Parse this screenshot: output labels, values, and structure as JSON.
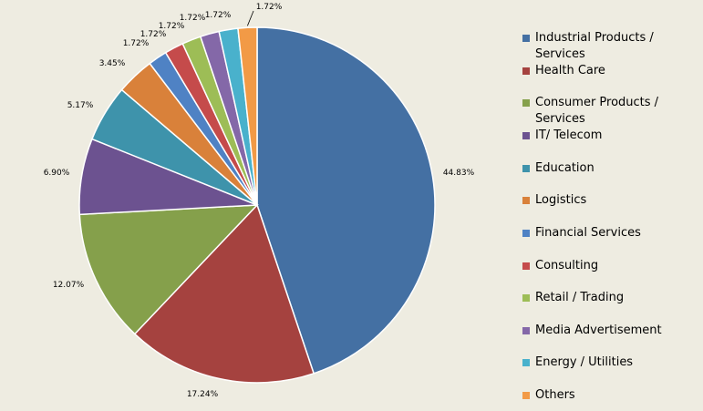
{
  "chart_data": {
    "type": "pie",
    "title": "",
    "legend_position": "right",
    "slices": [
      {
        "label": "Industrial Products / Services",
        "value": 44.83,
        "value_label": "44.83%",
        "color": "#4470a3"
      },
      {
        "label": "Health Care",
        "value": 17.24,
        "value_label": "17.24%",
        "color": "#a5423f"
      },
      {
        "label": "Consumer Products / Services",
        "value": 12.07,
        "value_label": "12.07%",
        "color": "#85a04b"
      },
      {
        "label": "IT/ Telecom",
        "value": 6.9,
        "value_label": "6.90%",
        "color": "#6c5290"
      },
      {
        "label": "Education",
        "value": 5.17,
        "value_label": "5.17%",
        "color": "#3e93ab"
      },
      {
        "label": "Logistics",
        "value": 3.45,
        "value_label": "3.45%",
        "color": "#d9813a"
      },
      {
        "label": "Financial Services",
        "value": 1.72,
        "value_label": "1.72%",
        "color": "#4f82c4"
      },
      {
        "label": "Consulting",
        "value": 1.72,
        "value_label": "1.72%",
        "color": "#c54b4b"
      },
      {
        "label": "Retail / Trading",
        "value": 1.72,
        "value_label": "1.72%",
        "color": "#9dbd56"
      },
      {
        "label": "Media Advertisement",
        "value": 1.72,
        "value_label": "1.72%",
        "color": "#8468a8"
      },
      {
        "label": "Energy / Utilities",
        "value": 1.72,
        "value_label": "1.72%",
        "color": "#49b1cc"
      },
      {
        "label": "Others",
        "value": 1.72,
        "value_label": "1.72%",
        "color": "#f29a46"
      }
    ]
  }
}
